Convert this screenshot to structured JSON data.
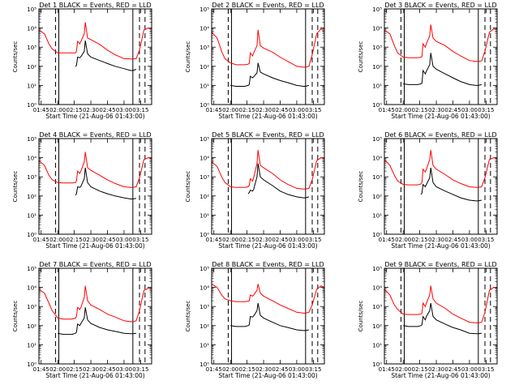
{
  "figure": {
    "xlabel": "Start Time (21-Aug-06 01:43:00)",
    "ylabel": "Counts/sec",
    "x_ticks": [
      "01:45",
      "02:00",
      "02:15",
      "02:30",
      "02:45",
      "03:00",
      "03:15"
    ],
    "y_ticks": [
      "10⁰",
      "10¹",
      "10²",
      "10³",
      "10⁴",
      "10⁵"
    ],
    "colors": {
      "events": "#000000",
      "lld": "#ff0000"
    }
  },
  "chart_data": [
    {
      "type": "line",
      "title": "Det 1 BLACK = Events, RED = LLD",
      "xlim": [
        "01:43",
        "03:25"
      ],
      "ylim": [
        1,
        100000
      ],
      "yscale": "log",
      "vlines_dashed": [
        "01:58",
        "03:14",
        "03:19"
      ],
      "vlines_solid": [
        "02:01",
        "03:08"
      ],
      "x": [
        "01:43",
        "01:48",
        "01:52",
        "01:55",
        "02:00",
        "02:05",
        "02:10",
        "02:13",
        "02:16",
        "02:17",
        "02:18",
        "02:20",
        "02:21",
        "02:24",
        "02:25",
        "02:27",
        "02:30",
        "02:38",
        "02:45",
        "02:52",
        "03:00",
        "03:06",
        "03:08",
        "03:11",
        "03:14",
        "03:18",
        "03:22",
        "03:25"
      ],
      "series": [
        {
          "name": "Events",
          "values": [
            null,
            null,
            null,
            null,
            null,
            null,
            null,
            null,
            100,
            110,
            300,
            280,
            320,
            600,
            2200,
            450,
            300,
            200,
            140,
            100,
            75,
            60,
            60,
            70,
            null,
            null,
            null,
            null
          ]
        },
        {
          "name": "LLD",
          "values": [
            8000,
            5000,
            1500,
            800,
            500,
            500,
            500,
            500,
            500,
            600,
            2000,
            1500,
            2000,
            5000,
            20000,
            3000,
            2500,
            1400,
            700,
            400,
            250,
            240,
            240,
            250,
            700,
            8000,
            10000,
            9000
          ]
        }
      ]
    },
    {
      "type": "line",
      "title": "Det 2 BLACK = Events, RED = LLD",
      "xlim": [
        "01:43",
        "03:25"
      ],
      "ylim": [
        1,
        100000
      ],
      "yscale": "log",
      "vlines_dashed": [
        "01:58",
        "03:14",
        "03:19"
      ],
      "vlines_solid": [
        "02:01",
        "03:08"
      ],
      "x": [
        "01:43",
        "01:48",
        "01:52",
        "01:55",
        "02:00",
        "02:05",
        "02:10",
        "02:13",
        "02:16",
        "02:17",
        "02:18",
        "02:20",
        "02:21",
        "02:24",
        "02:25",
        "02:27",
        "02:30",
        "02:38",
        "02:45",
        "02:52",
        "03:00",
        "03:06",
        "03:08",
        "03:11",
        "03:14",
        "03:18",
        "03:22",
        "03:25"
      ],
      "series": [
        {
          "name": "Events",
          "values": [
            null,
            null,
            null,
            null,
            10,
            9,
            9,
            9,
            10,
            11,
            30,
            25,
            28,
            45,
            150,
            50,
            40,
            25,
            18,
            14,
            10,
            9,
            9,
            10,
            null,
            null,
            null,
            null
          ]
        },
        {
          "name": "LLD",
          "values": [
            6000,
            3000,
            600,
            250,
            150,
            120,
            120,
            120,
            130,
            140,
            500,
            350,
            500,
            1200,
            8000,
            1200,
            900,
            550,
            300,
            180,
            100,
            90,
            90,
            100,
            400,
            5000,
            9000,
            7000
          ]
        }
      ]
    },
    {
      "type": "line",
      "title": "Det 3 BLACK = Events, RED = LLD",
      "xlim": [
        "01:43",
        "03:25"
      ],
      "ylim": [
        1,
        100000
      ],
      "yscale": "log",
      "vlines_dashed": [
        "01:58",
        "03:14",
        "03:19"
      ],
      "vlines_solid": [
        "02:01",
        "03:08"
      ],
      "x": [
        "01:43",
        "01:48",
        "01:52",
        "01:55",
        "02:00",
        "02:05",
        "02:10",
        "02:13",
        "02:16",
        "02:17",
        "02:18",
        "02:20",
        "02:21",
        "02:24",
        "02:25",
        "02:27",
        "02:30",
        "02:38",
        "02:45",
        "02:52",
        "03:00",
        "03:06",
        "03:08",
        "03:11",
        "03:14",
        "03:18",
        "03:22",
        "03:25"
      ],
      "series": [
        {
          "name": "Events",
          "values": [
            null,
            null,
            null,
            null,
            12,
            11,
            11,
            11,
            12,
            13,
            60,
            40,
            55,
            120,
            500,
            100,
            70,
            40,
            25,
            16,
            11,
            10,
            10,
            11,
            null,
            null,
            null,
            null
          ]
        },
        {
          "name": "LLD",
          "values": [
            8000,
            5000,
            1200,
            500,
            300,
            280,
            280,
            280,
            300,
            320,
            1500,
            1000,
            1500,
            4000,
            15000,
            3000,
            2000,
            1200,
            600,
            350,
            200,
            180,
            180,
            190,
            600,
            6000,
            9000,
            8000
          ]
        }
      ]
    },
    {
      "type": "line",
      "title": "Det 4 BLACK = Events, RED = LLD",
      "xlim": [
        "01:43",
        "03:25"
      ],
      "ylim": [
        1,
        100000
      ],
      "yscale": "log",
      "vlines_dashed": [
        "01:58",
        "03:14",
        "03:19"
      ],
      "vlines_solid": [
        "02:01",
        "03:08"
      ],
      "x": [
        "01:43",
        "01:48",
        "01:52",
        "01:55",
        "02:00",
        "02:05",
        "02:10",
        "02:13",
        "02:16",
        "02:17",
        "02:18",
        "02:20",
        "02:21",
        "02:24",
        "02:25",
        "02:27",
        "02:30",
        "02:38",
        "02:45",
        "02:52",
        "03:00",
        "03:06",
        "03:08",
        "03:11",
        "03:14",
        "03:18",
        "03:22",
        "03:25"
      ],
      "series": [
        {
          "name": "Events",
          "values": [
            null,
            null,
            null,
            null,
            null,
            null,
            null,
            null,
            110,
            130,
            300,
            280,
            320,
            800,
            3000,
            500,
            300,
            180,
            130,
            100,
            80,
            70,
            70,
            75,
            null,
            null,
            null,
            null
          ]
        },
        {
          "name": "LLD",
          "values": [
            7000,
            4000,
            1200,
            700,
            500,
            480,
            480,
            480,
            500,
            600,
            2000,
            1500,
            2000,
            6000,
            20000,
            3000,
            2200,
            1200,
            700,
            450,
            300,
            280,
            280,
            300,
            900,
            8000,
            10000,
            9000
          ]
        }
      ]
    },
    {
      "type": "line",
      "title": "Det 5 BLACK = Events, RED = LLD",
      "xlim": [
        "01:43",
        "03:25"
      ],
      "ylim": [
        1,
        100000
      ],
      "yscale": "log",
      "vlines_dashed": [
        "01:58",
        "03:14",
        "03:19"
      ],
      "vlines_solid": [
        "02:01",
        "03:08"
      ],
      "x": [
        "01:43",
        "01:48",
        "01:52",
        "01:55",
        "02:00",
        "02:05",
        "02:10",
        "02:13",
        "02:16",
        "02:17",
        "02:18",
        "02:20",
        "02:21",
        "02:24",
        "02:25",
        "02:27",
        "02:30",
        "02:38",
        "02:45",
        "02:52",
        "03:00",
        "03:06",
        "03:08",
        "03:11",
        "03:14",
        "03:18",
        "03:22",
        "03:25"
      ],
      "series": [
        {
          "name": "Events",
          "values": [
            null,
            null,
            null,
            null,
            null,
            null,
            null,
            null,
            130,
            150,
            200,
            180,
            220,
            1000,
            5000,
            1000,
            700,
            350,
            180,
            120,
            90,
            80,
            80,
            90,
            null,
            null,
            null,
            null
          ]
        },
        {
          "name": "LLD",
          "values": [
            6000,
            3500,
            1000,
            500,
            300,
            280,
            280,
            280,
            300,
            350,
            800,
            600,
            900,
            5000,
            25000,
            4000,
            3000,
            1500,
            700,
            400,
            250,
            230,
            230,
            250,
            700,
            7000,
            10000,
            9000
          ]
        }
      ]
    },
    {
      "type": "line",
      "title": "Det 6 BLACK = Events, RED = LLD",
      "xlim": [
        "01:43",
        "03:25"
      ],
      "ylim": [
        1,
        100000
      ],
      "yscale": "log",
      "vlines_dashed": [
        "01:58",
        "03:14",
        "03:19"
      ],
      "vlines_solid": [
        "02:01",
        "03:08"
      ],
      "x": [
        "01:43",
        "01:48",
        "01:52",
        "01:55",
        "02:00",
        "02:05",
        "02:10",
        "02:13",
        "02:16",
        "02:17",
        "02:18",
        "02:20",
        "02:21",
        "02:24",
        "02:25",
        "02:27",
        "02:30",
        "02:38",
        "02:45",
        "02:52",
        "03:00",
        "03:06",
        "03:08",
        "03:11",
        "03:14",
        "03:18",
        "03:22",
        "03:25"
      ],
      "series": [
        {
          "name": "Events",
          "values": [
            null,
            null,
            null,
            null,
            null,
            null,
            null,
            null,
            120,
            140,
            400,
            300,
            400,
            900,
            3000,
            500,
            300,
            180,
            120,
            80,
            60,
            55,
            55,
            60,
            null,
            null,
            null,
            null
          ]
        },
        {
          "name": "LLD",
          "values": [
            8000,
            4000,
            1200,
            600,
            400,
            380,
            380,
            380,
            420,
            500,
            2500,
            1800,
            2500,
            8000,
            25000,
            4000,
            2500,
            1300,
            700,
            450,
            300,
            280,
            280,
            300,
            900,
            8000,
            10000,
            9000
          ]
        }
      ]
    },
    {
      "type": "line",
      "title": "Det 7 BLACK = Events, RED = LLD",
      "xlim": [
        "01:43",
        "03:25"
      ],
      "ylim": [
        1,
        100000
      ],
      "yscale": "log",
      "vlines_dashed": [
        "01:58",
        "03:14",
        "03:19"
      ],
      "vlines_solid": [
        "02:01",
        "03:08"
      ],
      "x": [
        "01:43",
        "01:48",
        "01:52",
        "01:55",
        "02:00",
        "02:05",
        "02:10",
        "02:13",
        "02:16",
        "02:17",
        "02:18",
        "02:20",
        "02:21",
        "02:24",
        "02:25",
        "02:27",
        "02:30",
        "02:38",
        "02:45",
        "02:52",
        "03:00",
        "03:06",
        "03:08",
        "03:11",
        "03:14",
        "03:18",
        "03:22",
        "03:25"
      ],
      "series": [
        {
          "name": "Events",
          "values": [
            null,
            null,
            null,
            null,
            40,
            35,
            35,
            35,
            40,
            45,
            120,
            100,
            130,
            250,
            900,
            200,
            130,
            80,
            60,
            50,
            40,
            38,
            38,
            40,
            null,
            null,
            null,
            null
          ]
        },
        {
          "name": "LLD",
          "values": [
            8000,
            5000,
            1500,
            600,
            250,
            220,
            220,
            220,
            250,
            300,
            900,
            700,
            900,
            3000,
            12000,
            2000,
            1200,
            700,
            400,
            280,
            180,
            160,
            160,
            180,
            600,
            7000,
            9000,
            8000
          ]
        }
      ]
    },
    {
      "type": "line",
      "title": "Det 8 BLACK = Events, RED = LLD",
      "xlim": [
        "01:43",
        "03:25"
      ],
      "ylim": [
        1,
        100000
      ],
      "yscale": "log",
      "vlines_dashed": [
        "01:58",
        "03:14",
        "03:19"
      ],
      "vlines_solid": [
        "02:01",
        "03:08"
      ],
      "x": [
        "01:43",
        "01:48",
        "01:52",
        "01:55",
        "02:00",
        "02:05",
        "02:10",
        "02:13",
        "02:16",
        "02:17",
        "02:18",
        "02:20",
        "02:21",
        "02:24",
        "02:25",
        "02:27",
        "02:30",
        "02:38",
        "02:45",
        "02:52",
        "03:00",
        "03:06",
        "03:08",
        "03:11",
        "03:14",
        "03:18",
        "03:22",
        "03:25"
      ],
      "series": [
        {
          "name": "Events",
          "values": [
            null,
            null,
            null,
            null,
            100,
            90,
            90,
            90,
            100,
            110,
            300,
            280,
            320,
            600,
            1500,
            350,
            250,
            150,
            100,
            80,
            60,
            55,
            55,
            60,
            null,
            null,
            null,
            null
          ]
        },
        {
          "name": "LLD",
          "values": [
            15000,
            10000,
            4000,
            2500,
            2000,
            1800,
            1800,
            1800,
            1900,
            2000,
            4000,
            3500,
            4000,
            7000,
            15000,
            5000,
            3500,
            2000,
            1200,
            800,
            500,
            450,
            450,
            500,
            1200,
            8000,
            12000,
            10000
          ]
        }
      ]
    },
    {
      "type": "line",
      "title": "Det 9 BLACK = Events, RED = LLD",
      "xlim": [
        "01:43",
        "03:25"
      ],
      "ylim": [
        1,
        100000
      ],
      "yscale": "log",
      "vlines_dashed": [
        "01:58",
        "03:14",
        "03:19"
      ],
      "vlines_solid": [
        "02:01",
        "03:08"
      ],
      "x": [
        "01:43",
        "01:48",
        "01:52",
        "01:55",
        "02:00",
        "02:05",
        "02:10",
        "02:13",
        "02:16",
        "02:17",
        "02:18",
        "02:20",
        "02:21",
        "02:24",
        "02:25",
        "02:27",
        "02:30",
        "02:38",
        "02:45",
        "02:52",
        "03:00",
        "03:06",
        "03:08",
        "03:11",
        "03:14",
        "03:18",
        "03:22",
        "03:25"
      ],
      "series": [
        {
          "name": "Events",
          "values": [
            null,
            null,
            null,
            null,
            100,
            90,
            90,
            90,
            100,
            110,
            300,
            200,
            300,
            600,
            1500,
            300,
            200,
            120,
            80,
            60,
            40,
            38,
            38,
            40,
            null,
            null,
            null,
            null
          ]
        },
        {
          "name": "LLD",
          "values": [
            8000,
            4000,
            1200,
            700,
            400,
            380,
            380,
            380,
            400,
            450,
            1500,
            1000,
            1500,
            4000,
            12000,
            2500,
            1500,
            800,
            400,
            250,
            150,
            140,
            140,
            150,
            500,
            7000,
            10000,
            9000
          ]
        }
      ]
    }
  ]
}
